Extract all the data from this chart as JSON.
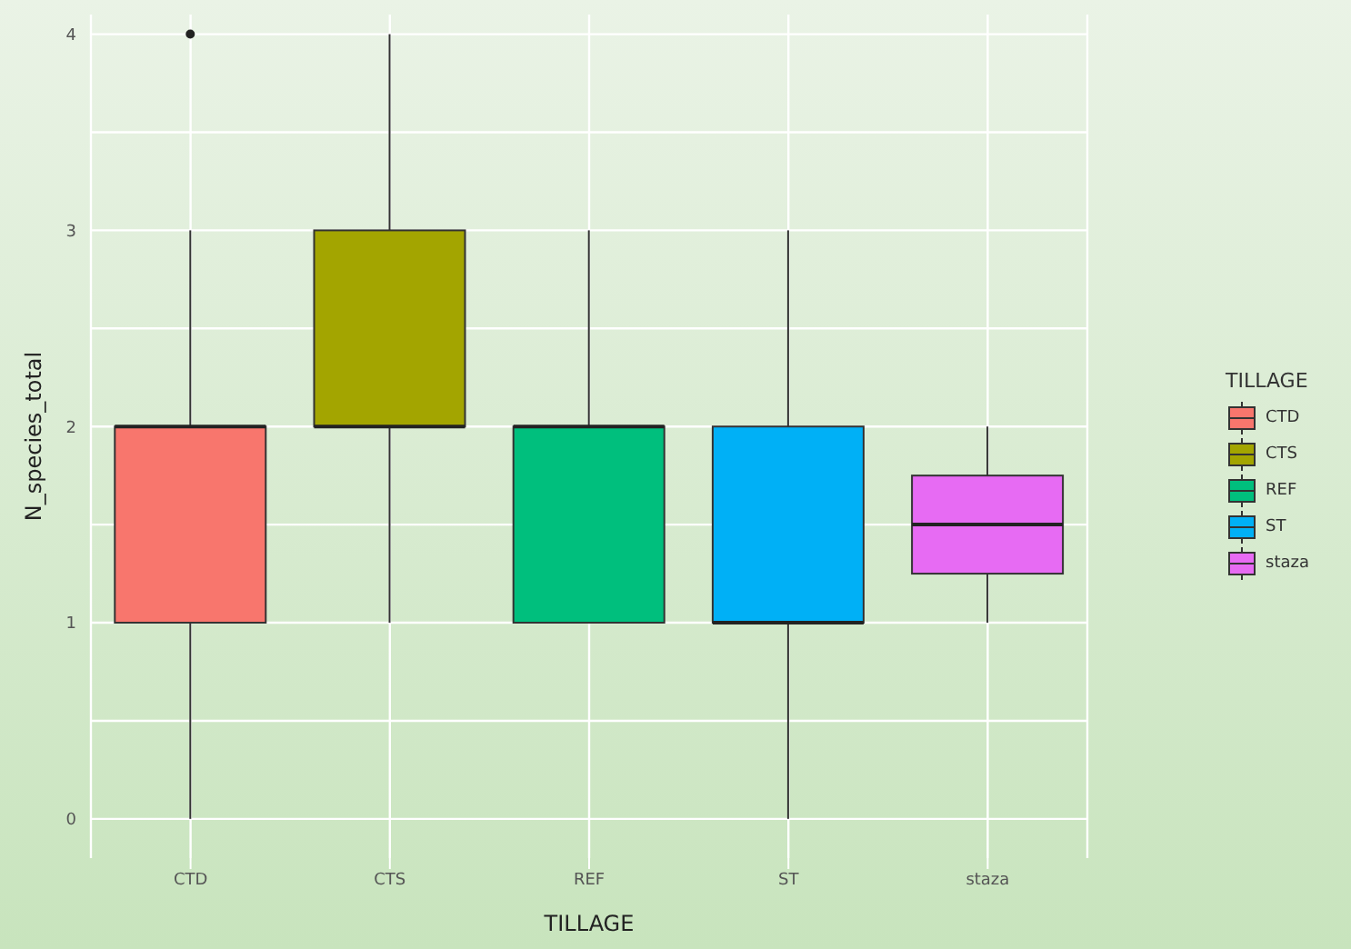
{
  "chart_data": {
    "type": "box",
    "xlabel": "TILLAGE",
    "ylabel": "N_species_total",
    "legend_title": "TILLAGE",
    "categories": [
      "CTD",
      "CTS",
      "REF",
      "ST",
      "staza"
    ],
    "series": [
      {
        "name": "CTD",
        "color": "#f8766d",
        "boxes": [
          {
            "low": 0,
            "q1": 1,
            "median": 2,
            "q3": 2,
            "high": 3,
            "outliers": [
              4
            ]
          },
          null,
          null,
          null,
          null
        ]
      },
      {
        "name": "CTS",
        "color": "#a3a500",
        "boxes": [
          null,
          {
            "low": 1,
            "q1": 2,
            "median": 2,
            "q3": 3,
            "high": 4
          },
          null,
          null,
          null
        ]
      },
      {
        "name": "REF",
        "color": "#00bf7d",
        "boxes": [
          null,
          null,
          {
            "low": 1,
            "q1": 1,
            "median": 2,
            "q3": 2,
            "high": 3
          },
          null,
          null
        ]
      },
      {
        "name": "ST",
        "color": "#00b0f6",
        "boxes": [
          null,
          null,
          null,
          {
            "low": 0,
            "q1": 1,
            "median": 1,
            "q3": 2,
            "high": 3
          },
          null
        ]
      },
      {
        "name": "staza",
        "color": "#e76bf3",
        "boxes": [
          null,
          null,
          null,
          null,
          {
            "low": 1,
            "q1": 1.25,
            "median": 1.5,
            "q3": 1.75,
            "high": 2
          }
        ]
      }
    ],
    "ylim": [
      -0.2,
      4.1
    ],
    "yticks": [
      0,
      1,
      2,
      3,
      4
    ],
    "grid": true,
    "legend": "right"
  }
}
